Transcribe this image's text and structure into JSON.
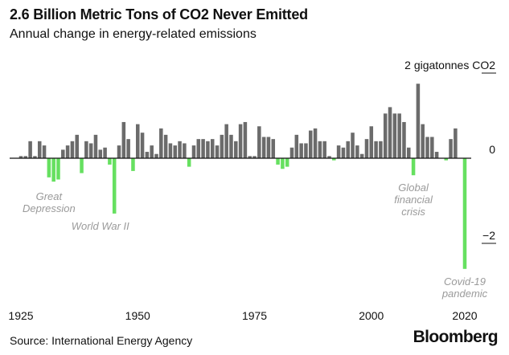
{
  "header": {
    "title": "2.6 Billion Metric Tons of CO2 Never Emitted",
    "subtitle": "Annual change in energy-related emissions"
  },
  "footer": {
    "source": "Source: International Energy Agency",
    "brand": "Bloomberg"
  },
  "colors": {
    "positive": "#6b6b6b",
    "negative": "#66e060",
    "text": "#111111",
    "annotation": "#9a9a9a"
  },
  "chart_data": {
    "type": "bar",
    "title": "2.6 Billion Metric Tons of CO2 Never Emitted",
    "subtitle": "Annual change in energy-related emissions",
    "ylabel": "gigatonnes CO2",
    "ylim": [
      -2.8,
      2.0
    ],
    "y_ticks": [
      {
        "value": 2,
        "label": "2 gigatonnes CO2"
      },
      {
        "value": 0,
        "label": "0"
      },
      {
        "value": -2,
        "label": "−2"
      }
    ],
    "x_ticks": [
      {
        "value": 1925,
        "label": "1925"
      },
      {
        "value": 1950,
        "label": "1950"
      },
      {
        "value": 1975,
        "label": "1975"
      },
      {
        "value": 2000,
        "label": "2000"
      },
      {
        "value": 2020,
        "label": "2020"
      }
    ],
    "x": [
      1925,
      1926,
      1927,
      1928,
      1929,
      1930,
      1931,
      1932,
      1933,
      1934,
      1935,
      1936,
      1937,
      1938,
      1939,
      1940,
      1941,
      1942,
      1943,
      1944,
      1945,
      1946,
      1947,
      1948,
      1949,
      1950,
      1951,
      1952,
      1953,
      1954,
      1955,
      1956,
      1957,
      1958,
      1959,
      1960,
      1961,
      1962,
      1963,
      1964,
      1965,
      1966,
      1967,
      1968,
      1969,
      1970,
      1971,
      1972,
      1973,
      1974,
      1975,
      1976,
      1977,
      1978,
      1979,
      1980,
      1981,
      1982,
      1983,
      1984,
      1985,
      1986,
      1987,
      1988,
      1989,
      1990,
      1991,
      1992,
      1993,
      1994,
      1995,
      1996,
      1997,
      1998,
      1999,
      2000,
      2001,
      2002,
      2003,
      2004,
      2005,
      2006,
      2007,
      2008,
      2009,
      2010,
      2011,
      2012,
      2013,
      2014,
      2015,
      2016,
      2017,
      2018,
      2019,
      2020
    ],
    "values": [
      0.05,
      0.05,
      0.4,
      0.05,
      0.4,
      0.3,
      -0.45,
      -0.55,
      -0.5,
      0.2,
      0.3,
      0.4,
      0.55,
      -0.35,
      0.4,
      0.35,
      0.55,
      0.2,
      0.25,
      -0.15,
      -1.3,
      0.3,
      0.85,
      0.45,
      -0.3,
      0.8,
      0.6,
      0.15,
      0.3,
      0.1,
      0.7,
      0.55,
      0.35,
      0.3,
      0.4,
      0.35,
      -0.2,
      0.3,
      0.45,
      0.45,
      0.4,
      0.45,
      0.3,
      0.55,
      0.8,
      0.55,
      0.4,
      0.8,
      0.85,
      0.05,
      0.05,
      0.75,
      0.5,
      0.5,
      0.45,
      -0.15,
      -0.25,
      -0.2,
      0.25,
      0.55,
      0.35,
      0.35,
      0.65,
      0.7,
      0.4,
      0.4,
      0.05,
      -0.05,
      0.3,
      0.25,
      0.4,
      0.6,
      0.3,
      0.1,
      0.45,
      0.75,
      0.4,
      0.4,
      1.05,
      1.2,
      1.05,
      1.05,
      0.85,
      0.25,
      -0.4,
      1.75,
      0.8,
      0.5,
      0.5,
      0.15,
      0.0,
      -0.05,
      0.45,
      0.7,
      0.0,
      -2.6
    ],
    "annotations": [
      {
        "lines": [
          "Great",
          "Depression"
        ],
        "x": 1931,
        "y": -0.75
      },
      {
        "lines": [
          "World War II"
        ],
        "x": 1942,
        "y": -1.45
      },
      {
        "lines": [
          "Global",
          "financial",
          "crisis"
        ],
        "x": 2009,
        "y": -0.55
      },
      {
        "lines": [
          "Covid-19",
          "pandemic"
        ],
        "x": 2020,
        "y": -2.75
      }
    ]
  }
}
